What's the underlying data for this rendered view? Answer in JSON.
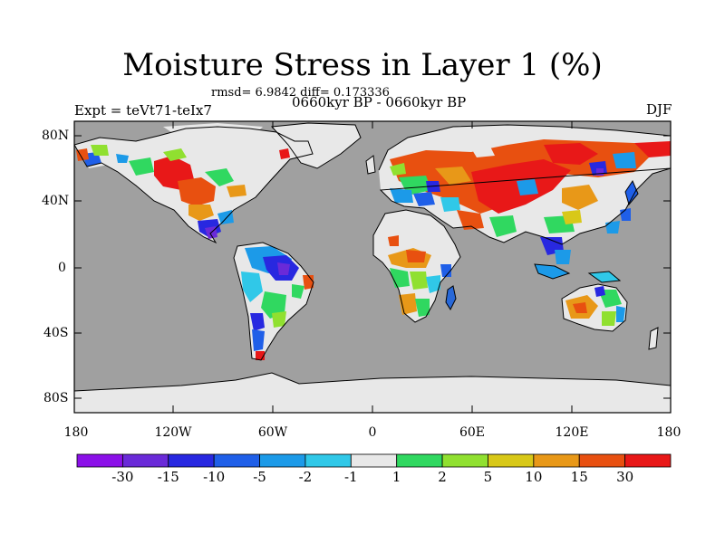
{
  "title": "Moisture Stress in Layer 1 (%)",
  "stats": "rmsd= 6.9842 diff= 0.173336",
  "period": "0660kyr BP - 0660kyr BP",
  "experiment": "Expt = teVt71-teIx7",
  "season": "DJF",
  "y_axis_labels": [
    "80N",
    "40N",
    "0",
    "40S",
    "80S"
  ],
  "x_axis_labels": [
    "180",
    "120W",
    "60W",
    "0",
    "60E",
    "120E",
    "180"
  ],
  "colorbar": {
    "labels": [
      "-30",
      "-15",
      "-10",
      "-5",
      "-2",
      "-1",
      "1",
      "2",
      "5",
      "10",
      "15",
      "30"
    ],
    "colors": [
      "#8b10e8",
      "#6a2ad8",
      "#2828e0",
      "#1f5fe8",
      "#1c9ae8",
      "#30c8e8",
      "#e8e8e8",
      "#30d860",
      "#90e030",
      "#d8c818",
      "#e89818",
      "#e85010",
      "#e81818"
    ]
  },
  "map_colors": {
    "ocean": "#a0a0a0",
    "land_neutral": "#e8e8e8",
    "coast": "#000000"
  }
}
